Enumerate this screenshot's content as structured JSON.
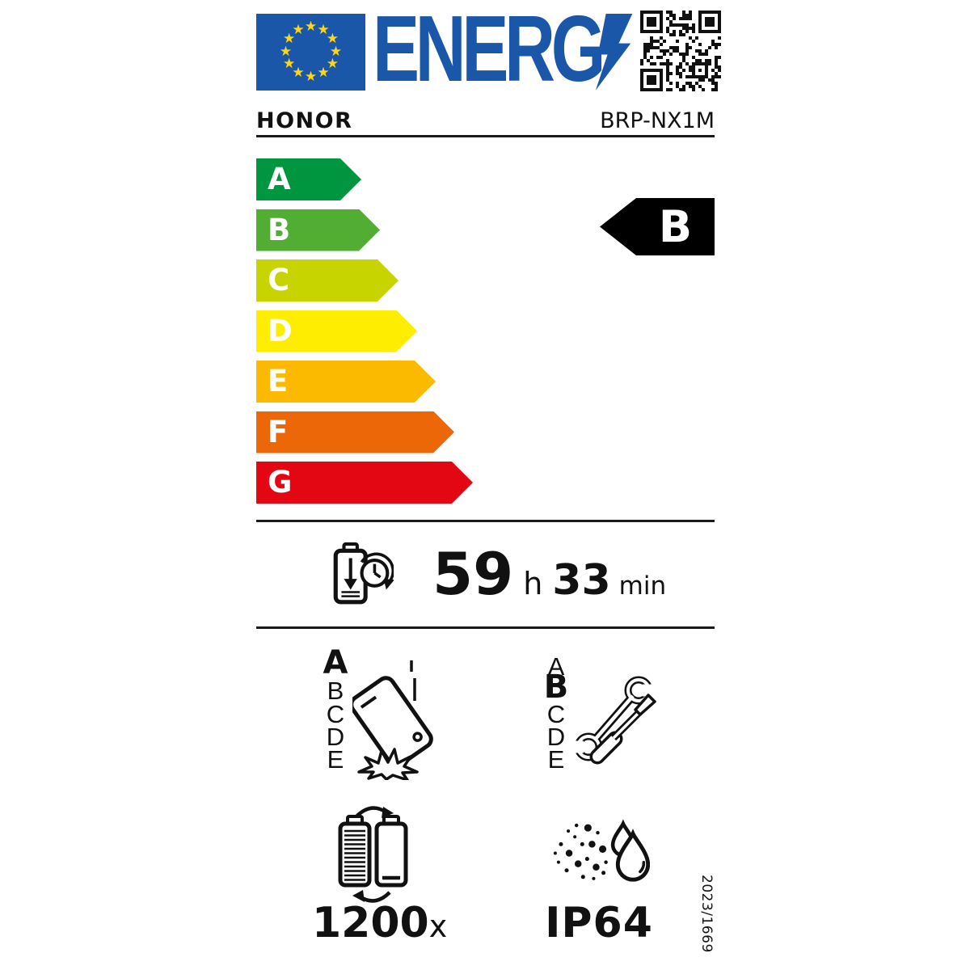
{
  "header": {
    "logo_text": "ENERG",
    "brand": "HONOR",
    "model": "BRP-NX1M"
  },
  "colors": {
    "eu_blue": "#1a57a8",
    "star_yellow": "#ffd617",
    "ink": "#111111",
    "rating_arrow_black": "#000000"
  },
  "energy_scale": {
    "classes": [
      {
        "label": "A",
        "color": "#009640"
      },
      {
        "label": "B",
        "color": "#52ae32"
      },
      {
        "label": "C",
        "color": "#c8d400"
      },
      {
        "label": "D",
        "color": "#ffed00"
      },
      {
        "label": "E",
        "color": "#fbba00"
      },
      {
        "label": "F",
        "color": "#ec6707"
      },
      {
        "label": "G",
        "color": "#e30613"
      }
    ],
    "rating": "B"
  },
  "battery_endurance": {
    "hours": "59",
    "hours_unit": "h",
    "minutes": "33",
    "minutes_unit": "min"
  },
  "free_fall": {
    "scale": [
      "A",
      "B",
      "C",
      "D",
      "E"
    ],
    "rating": "A"
  },
  "repairability": {
    "scale": [
      "A",
      "B",
      "C",
      "D",
      "E"
    ],
    "rating": "B"
  },
  "battery_cycles": {
    "value": "1200",
    "unit": "x"
  },
  "ip_rating": {
    "value": "IP64"
  },
  "regulation": "2023/1669",
  "icons": [
    "eu-flag",
    "lightning-bolt",
    "qr-code",
    "battery-endurance-clock",
    "phone-drop",
    "repair-tools",
    "battery-cycles",
    "dust-and-water-drops"
  ]
}
